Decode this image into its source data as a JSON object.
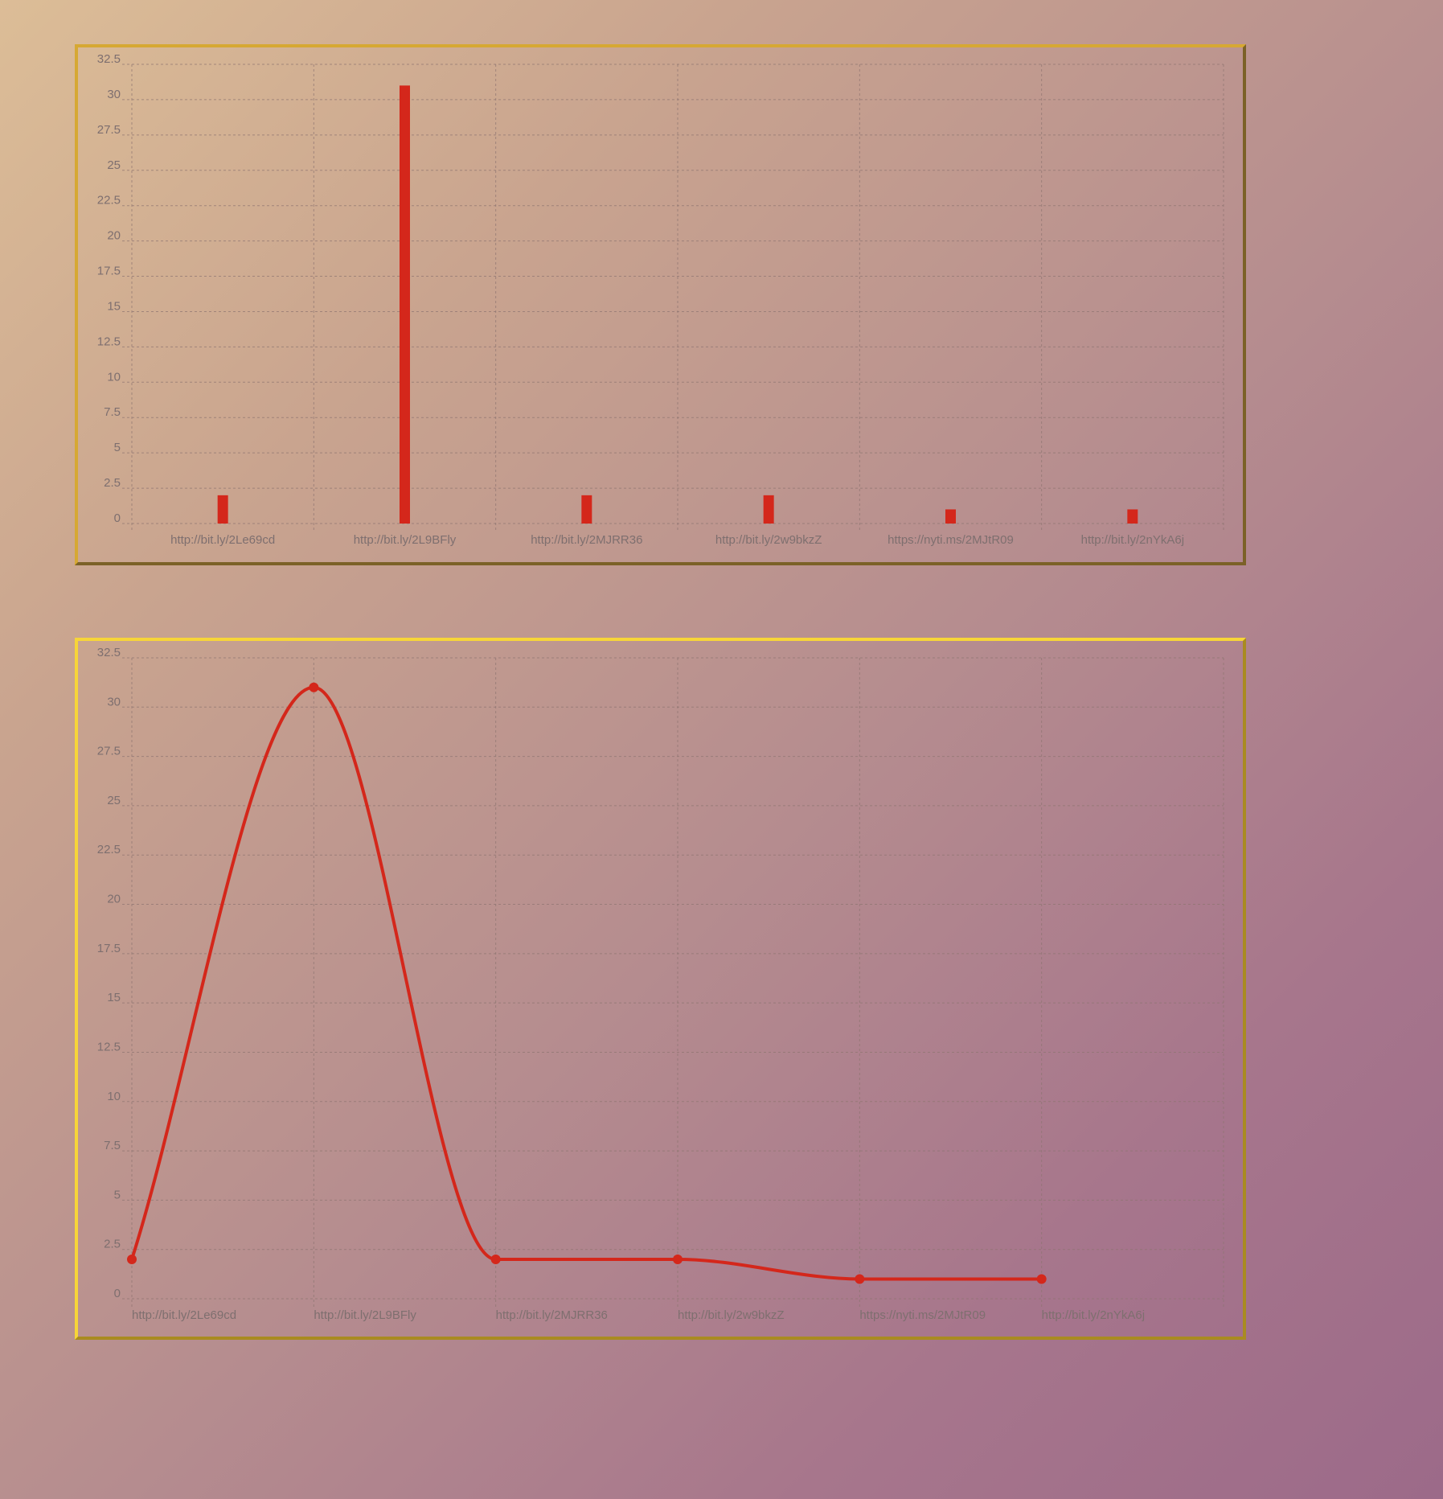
{
  "chart_data": [
    {
      "type": "bar",
      "categories": [
        "http://bit.ly/2Le69cd",
        "http://bit.ly/2L9BFly",
        "http://bit.ly/2MJRR36",
        "http://bit.ly/2w9bkzZ",
        "https://nyti.ms/2MJtR09",
        "http://bit.ly/2nYkA6j"
      ],
      "values": [
        2,
        31,
        2,
        2,
        1,
        1
      ],
      "yticks": [
        "0",
        "2.5",
        "5",
        "7.5",
        "10",
        "12.5",
        "15",
        "17.5",
        "20",
        "22.5",
        "25",
        "27.5",
        "30",
        "32.5"
      ],
      "ylim": [
        0,
        32.5
      ],
      "grid": true,
      "color": "#d4271b"
    },
    {
      "type": "line",
      "categories": [
        "http://bit.ly/2Le69cd",
        "http://bit.ly/2L9BFly",
        "http://bit.ly/2MJRR36",
        "http://bit.ly/2w9bkzZ",
        "https://nyti.ms/2MJtR09",
        "http://bit.ly/2nYkA6j"
      ],
      "values": [
        2,
        31,
        2,
        2,
        1,
        1
      ],
      "yticks": [
        "0",
        "2.5",
        "5",
        "7.5",
        "10",
        "12.5",
        "15",
        "17.5",
        "20",
        "22.5",
        "25",
        "27.5",
        "30",
        "32.5"
      ],
      "ylim": [
        0,
        32.5
      ],
      "grid": true,
      "smooth": true,
      "color": "#d4271b"
    }
  ]
}
